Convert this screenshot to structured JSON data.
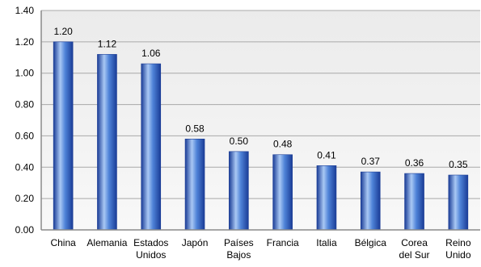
{
  "chart_data": {
    "type": "bar",
    "categories": [
      "China",
      "Alemania",
      "Estados Unidos",
      "Japón",
      "Países Bajos",
      "Francia",
      "Italia",
      "Bélgica",
      "Corea del Sur",
      "Reino Unido"
    ],
    "category_lines": [
      [
        "China"
      ],
      [
        "Alemania"
      ],
      [
        "Estados",
        "Unidos"
      ],
      [
        "Japón"
      ],
      [
        "Países",
        "Bajos"
      ],
      [
        "Francia"
      ],
      [
        "Italia"
      ],
      [
        "Bélgica"
      ],
      [
        "Corea",
        "del Sur"
      ],
      [
        "Reino",
        "Unido"
      ]
    ],
    "values": [
      1.2,
      1.12,
      1.06,
      0.58,
      0.5,
      0.48,
      0.41,
      0.37,
      0.36,
      0.35
    ],
    "value_labels": [
      "1.20",
      "1.12",
      "1.06",
      "0.58",
      "0.50",
      "0.48",
      "0.41",
      "0.37",
      "0.36",
      "0.35"
    ],
    "yticks": [
      0,
      0.2,
      0.4,
      0.6,
      0.8,
      1.0,
      1.2,
      1.4
    ],
    "ytick_labels": [
      "0.00",
      "0.20",
      "0.40",
      "0.60",
      "0.80",
      "1.00",
      "1.20",
      "1.40"
    ],
    "ylim": [
      0,
      1.4
    ],
    "title": "",
    "xlabel": "",
    "ylabel": "",
    "grid": true,
    "legend": "none",
    "colors": {
      "bar_dark": "#1a3c96",
      "bar_mid": "#4f83d8",
      "bar_light": "#a9c8f4",
      "plot_bg_top": "#ebebeb",
      "plot_bg_bottom": "#f8f8f8",
      "grid": "#a8a8a8",
      "axis": "#8a8a8a"
    }
  }
}
